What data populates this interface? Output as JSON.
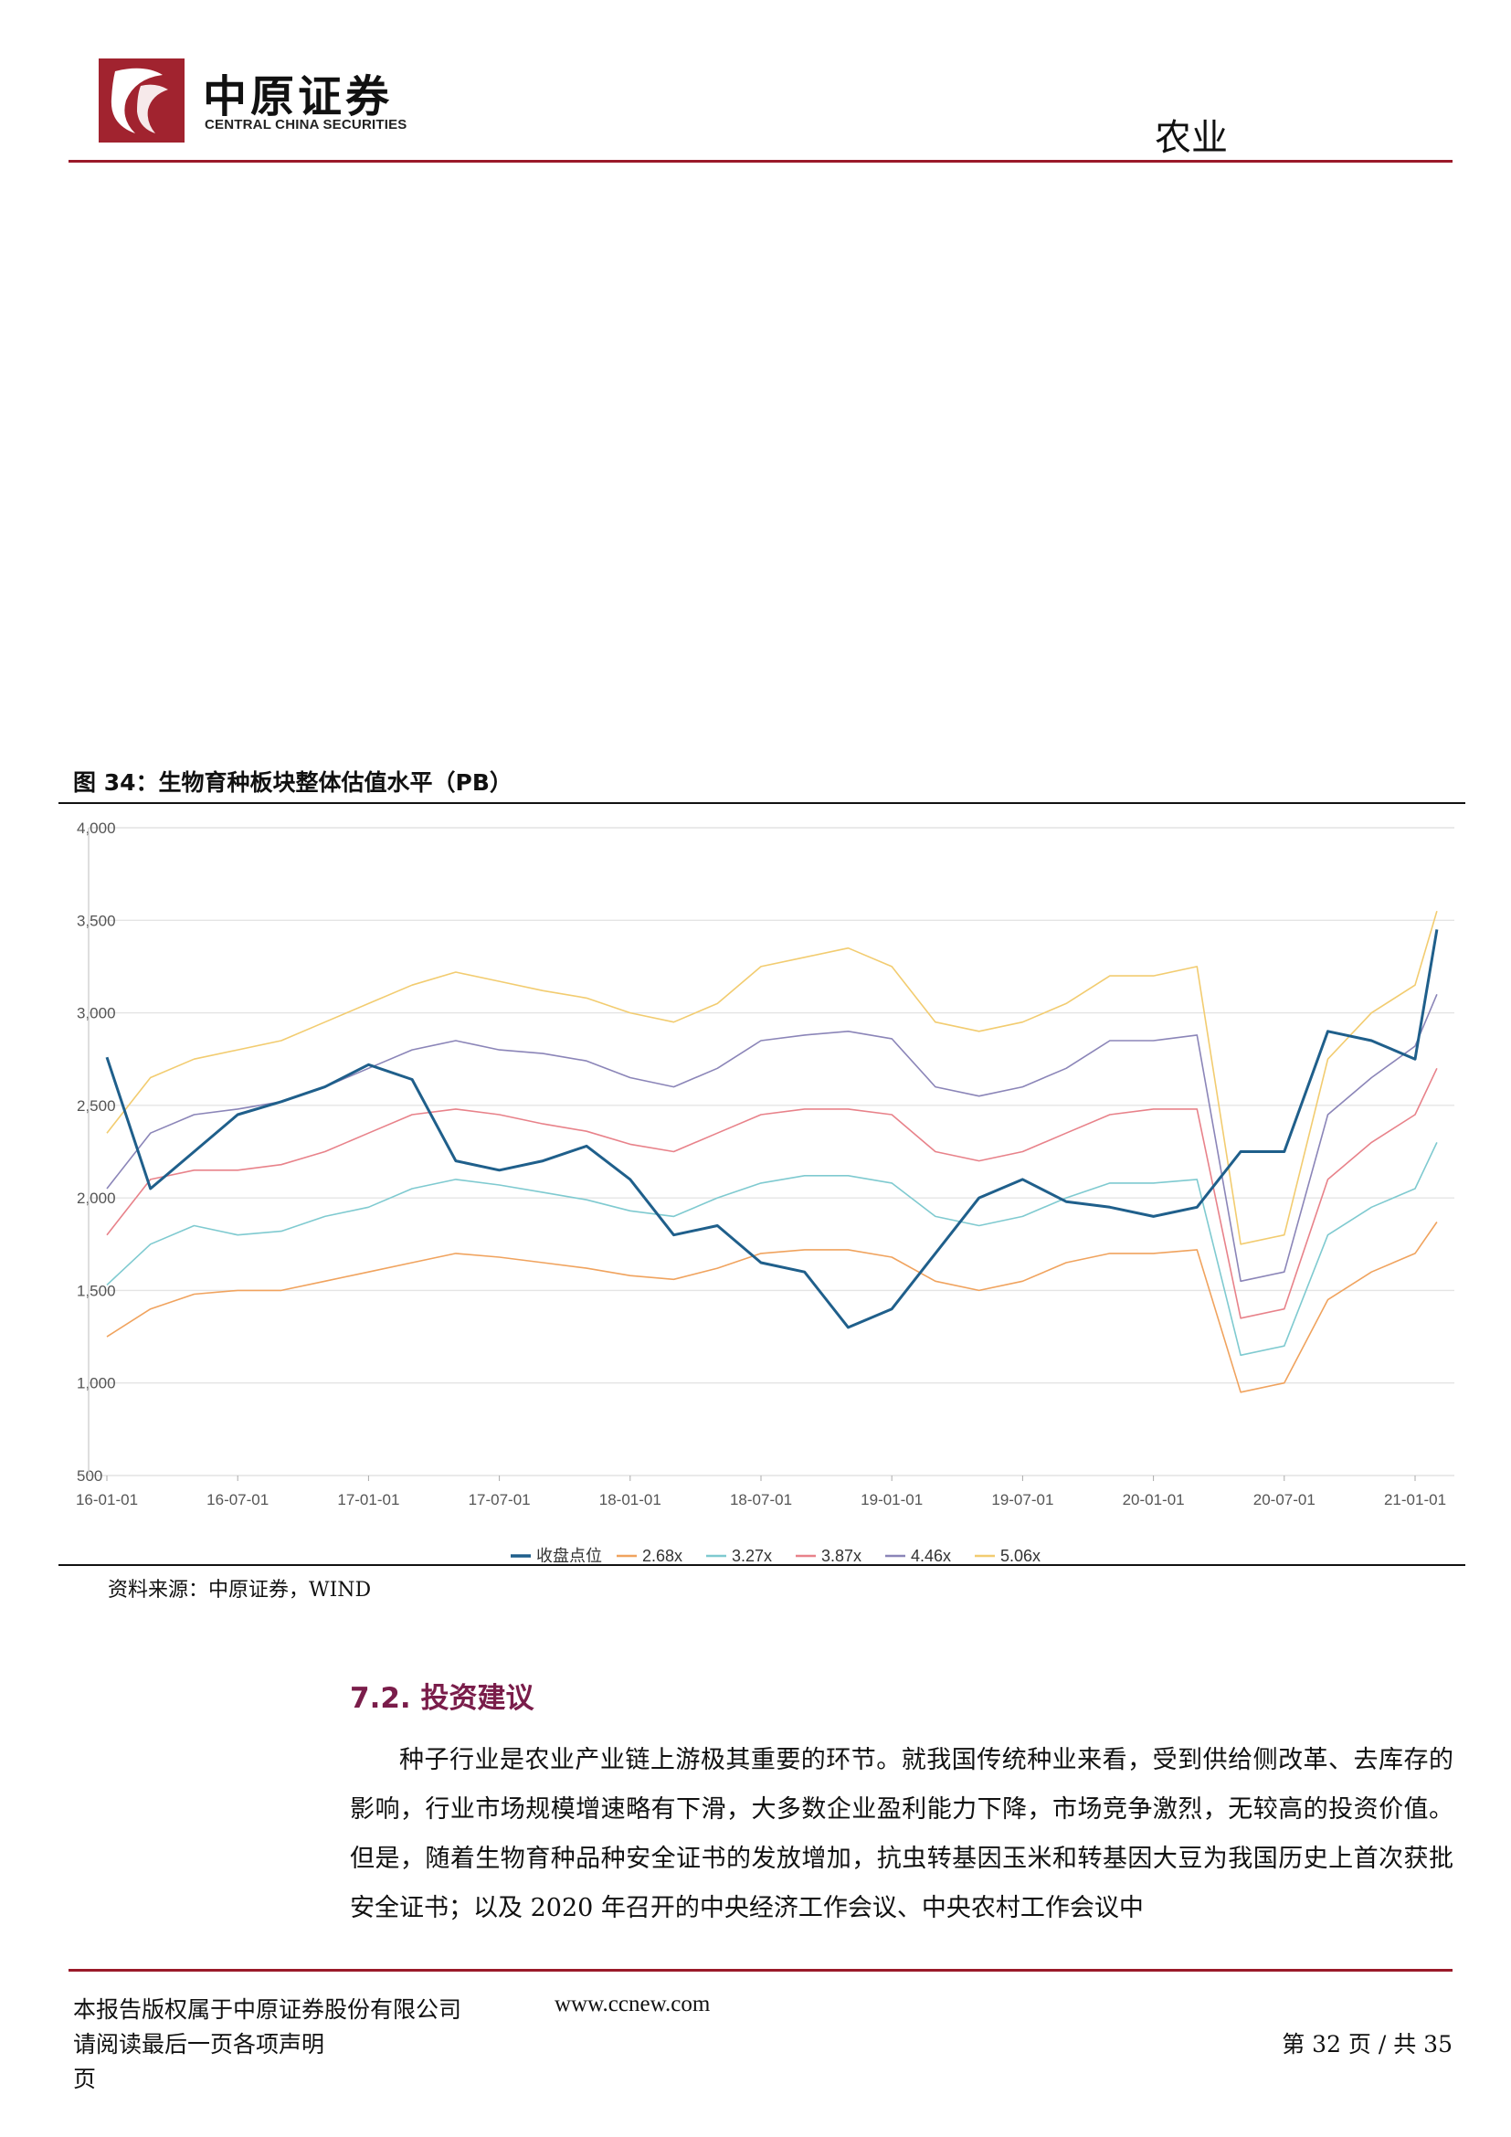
{
  "header": {
    "logo_cn": "中原证券",
    "logo_en": "CENTRAL CHINA SECURITIES",
    "sector": "农业",
    "colors": {
      "accent": "#9b1a2a"
    }
  },
  "figure": {
    "caption": "图 34：生物育种板块整体估值水平（PB）",
    "source": "资料来源：中原证券，WIND"
  },
  "chart_data": {
    "type": "line",
    "ylim": [
      500,
      4000
    ],
    "yticks": [
      "4,000",
      "3,500",
      "3,000",
      "2,500",
      "2,000",
      "1,500",
      "1,000",
      "500"
    ],
    "x_ticks": [
      "16-01-01",
      "16-07-01",
      "17-01-01",
      "17-07-01",
      "18-01-01",
      "18-07-01",
      "19-01-01",
      "19-07-01",
      "20-01-01",
      "20-07-01",
      "21-01-01"
    ],
    "x": [
      "16-01-01",
      "16-03-01",
      "16-05-01",
      "16-07-01",
      "16-09-01",
      "16-11-01",
      "17-01-01",
      "17-03-01",
      "17-05-01",
      "17-07-01",
      "17-09-01",
      "17-11-01",
      "18-01-01",
      "18-03-01",
      "18-05-01",
      "18-07-01",
      "18-09-01",
      "18-11-01",
      "19-01-01",
      "19-03-01",
      "19-05-01",
      "19-07-01",
      "19-09-01",
      "19-11-01",
      "20-01-01",
      "20-03-01",
      "20-05-01",
      "20-07-01",
      "20-09-01",
      "20-11-01",
      "21-01-01",
      "21-02-01"
    ],
    "series": [
      {
        "name": "收盘点位",
        "color": "#1f5f8b",
        "width": 3,
        "values": [
          2760,
          2050,
          2250,
          2450,
          2520,
          2600,
          2720,
          2640,
          2200,
          2150,
          2200,
          2280,
          2100,
          1800,
          1850,
          1650,
          1600,
          1300,
          1400,
          1700,
          2000,
          2100,
          1980,
          1950,
          1900,
          1950,
          2250,
          2250,
          2900,
          2850,
          2750,
          3450
        ]
      },
      {
        "name": "2.68x",
        "color": "#f0a35e",
        "width": 1.6,
        "values": [
          1250,
          1400,
          1480,
          1500,
          1500,
          1550,
          1600,
          1650,
          1700,
          1680,
          1650,
          1620,
          1580,
          1560,
          1620,
          1700,
          1720,
          1720,
          1680,
          1550,
          1500,
          1550,
          1650,
          1700,
          1700,
          1720,
          950,
          1000,
          1450,
          1600,
          1700,
          1870
        ]
      },
      {
        "name": "3.27x",
        "color": "#7fcad0",
        "width": 1.6,
        "values": [
          1530,
          1750,
          1850,
          1800,
          1820,
          1900,
          1950,
          2050,
          2100,
          2070,
          2030,
          1990,
          1930,
          1900,
          2000,
          2080,
          2120,
          2120,
          2080,
          1900,
          1850,
          1900,
          2000,
          2080,
          2080,
          2100,
          1150,
          1200,
          1800,
          1950,
          2050,
          2300
        ]
      },
      {
        "name": "3.87x",
        "color": "#e8828a",
        "width": 1.6,
        "values": [
          1800,
          2100,
          2150,
          2150,
          2180,
          2250,
          2350,
          2450,
          2480,
          2450,
          2400,
          2360,
          2290,
          2250,
          2350,
          2450,
          2480,
          2480,
          2450,
          2250,
          2200,
          2250,
          2350,
          2450,
          2480,
          2480,
          1350,
          1400,
          2100,
          2300,
          2450,
          2700
        ]
      },
      {
        "name": "4.46x",
        "color": "#8b85b8",
        "width": 1.6,
        "values": [
          2050,
          2350,
          2450,
          2480,
          2520,
          2600,
          2700,
          2800,
          2850,
          2800,
          2780,
          2740,
          2650,
          2600,
          2700,
          2850,
          2880,
          2900,
          2860,
          2600,
          2550,
          2600,
          2700,
          2850,
          2850,
          2880,
          1550,
          1600,
          2450,
          2650,
          2820,
          3100
        ]
      },
      {
        "name": "5.06x",
        "color": "#f2cc70",
        "width": 1.6,
        "values": [
          2350,
          2650,
          2750,
          2800,
          2850,
          2950,
          3050,
          3150,
          3220,
          3170,
          3120,
          3080,
          3000,
          2950,
          3050,
          3250,
          3300,
          3350,
          3250,
          2950,
          2900,
          2950,
          3050,
          3200,
          3200,
          3250,
          1750,
          1800,
          2750,
          3000,
          3150,
          3550
        ]
      }
    ],
    "legend": [
      "收盘点位",
      "2.68x",
      "3.27x",
      "3.87x",
      "4.46x",
      "5.06x"
    ],
    "legend_position": "bottom"
  },
  "section": {
    "title": "7.2. 投资建议",
    "body": "种子行业是农业产业链上游极其重要的环节。就我国传统种业来看，受到供给侧改革、去库存的影响，行业市场规模增速略有下滑，大多数企业盈利能力下降，市场竞争激烈，无较高的投资价值。但是，随着生物育种品种安全证书的发放增加，抗虫转基因玉米和转基因大豆为我国历史上首次获批安全证书；以及 2020 年召开的中央经济工作会议、中央农村工作会议中"
  },
  "footer": {
    "copyright": "本报告版权属于中原证券股份有限公司",
    "url": "www.ccnew.com",
    "notice": "请阅读最后一页各项声明",
    "page_word": "页",
    "page_info": "第 32 页 / 共 35"
  }
}
